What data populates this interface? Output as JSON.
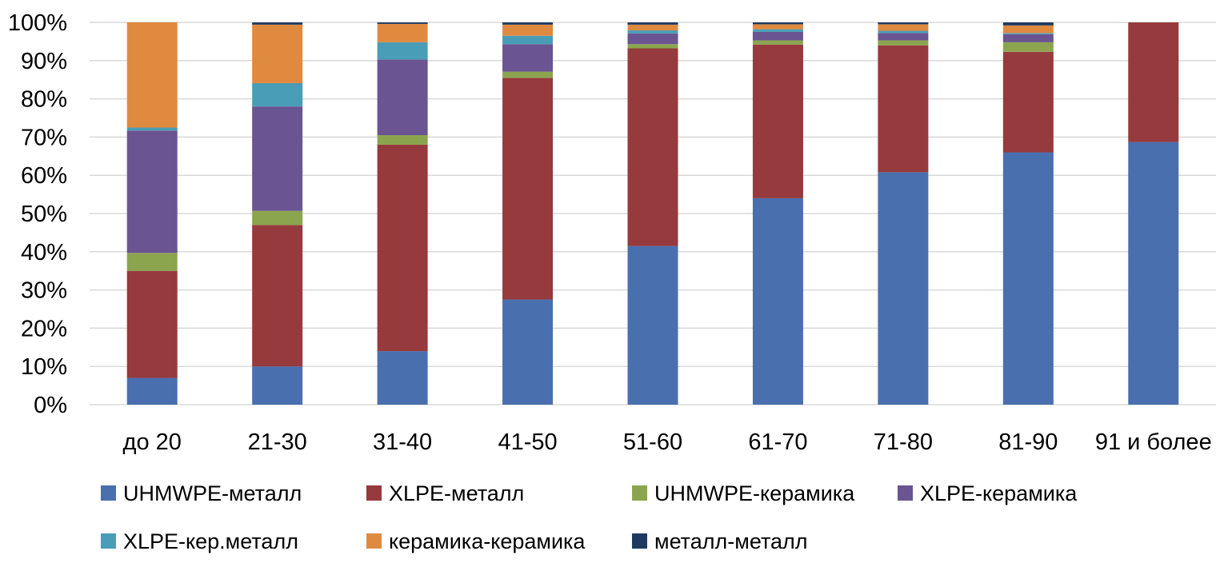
{
  "chart_data": {
    "type": "bar",
    "stacked": "percent",
    "title": "",
    "xlabel": "",
    "ylabel": "",
    "ylim": [
      0,
      100
    ],
    "yticks": [
      0,
      10,
      20,
      30,
      40,
      50,
      60,
      70,
      80,
      90,
      100
    ],
    "ytick_labels": [
      "0%",
      "10%",
      "20%",
      "30%",
      "40%",
      "50%",
      "60%",
      "70%",
      "80%",
      "90%",
      "100%"
    ],
    "grid": true,
    "legend_position": "bottom",
    "categories": [
      "до 20",
      "21-30",
      "31-40",
      "41-50",
      "51-60",
      "61-70",
      "71-80",
      "81-90",
      "91 и более"
    ],
    "series": [
      {
        "name": "UHMWPE-металл",
        "color": "#4a6faf",
        "values": [
          7,
          10,
          14,
          27.5,
          41.5,
          54,
          60.8,
          66,
          68.7
        ]
      },
      {
        "name": "XLPE-металл",
        "color": "#963a3d",
        "values": [
          28,
          37,
          54,
          58,
          51.7,
          40.2,
          33.2,
          26.3,
          31.3
        ]
      },
      {
        "name": "UHMWPE-керамика",
        "color": "#8ba54e",
        "values": [
          4.7,
          3.7,
          2.5,
          1.6,
          1.1,
          1.1,
          1.3,
          2.5,
          0
        ]
      },
      {
        "name": "XLPE-керамика",
        "color": "#6a5491",
        "values": [
          32,
          27.3,
          19.8,
          7.2,
          2.8,
          2.2,
          1.9,
          2.1,
          0
        ]
      },
      {
        "name": "XLPE-кер.металл",
        "color": "#4a9db6",
        "values": [
          0.8,
          6.1,
          4.5,
          2.2,
          0.8,
          0.7,
          0.6,
          0.3,
          0
        ]
      },
      {
        "name": "керамика-керамика",
        "color": "#e08a40",
        "values": [
          27.5,
          15.3,
          4.8,
          2.9,
          1.5,
          1.3,
          1.7,
          2.0,
          0
        ]
      },
      {
        "name": "металл-металл",
        "color": "#1f3a60",
        "values": [
          0,
          0.6,
          0.4,
          0.6,
          0.6,
          0.5,
          0.5,
          0.8,
          0
        ]
      }
    ]
  }
}
